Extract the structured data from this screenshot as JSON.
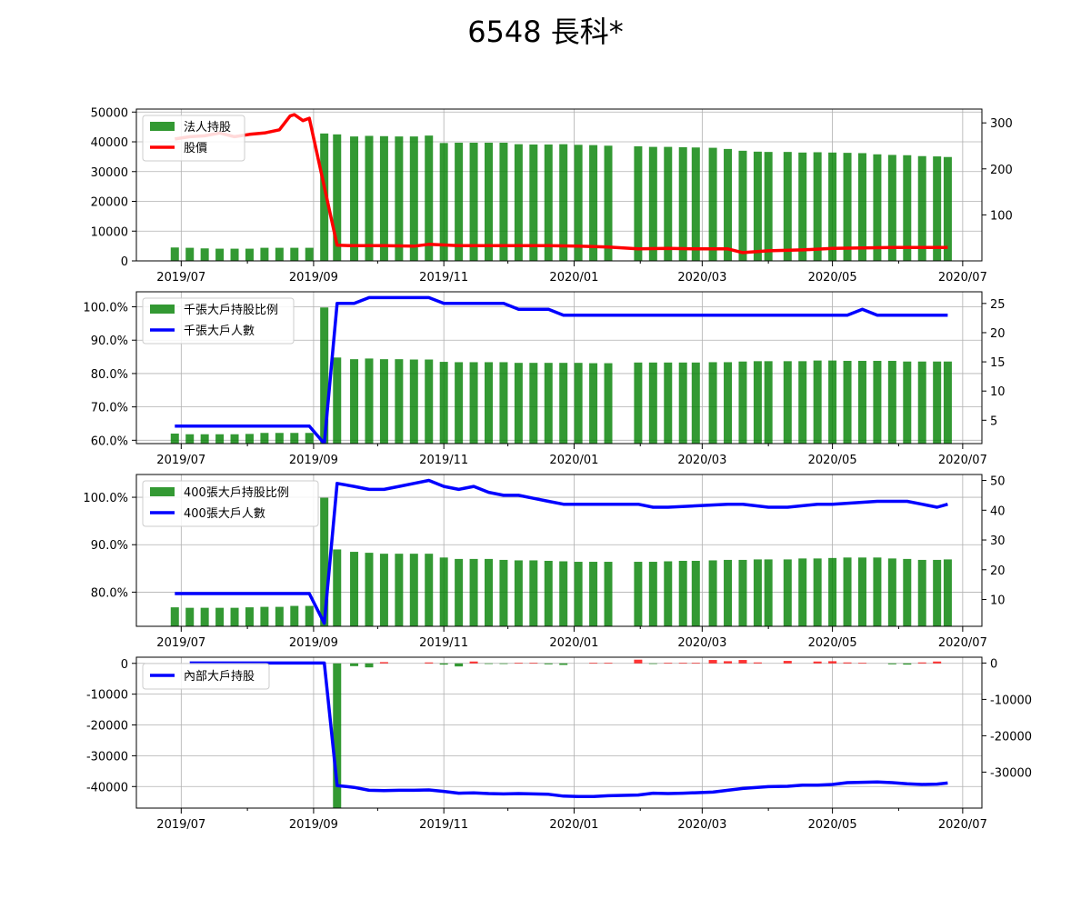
{
  "title": "6548 長科*",
  "colors": {
    "bar_green": "#008000",
    "price_red": "#ff0000",
    "line_blue": "#0000ff",
    "bar_red": "#ff0000"
  },
  "x_ticks": [
    "2019/07",
    "2019/09",
    "2019/11",
    "2020/01",
    "2020/03",
    "2020/05",
    "2020/07"
  ],
  "chart_data": [
    {
      "type": "bar",
      "title": "",
      "legend": {
        "position": "top-left",
        "bar_label": "法人持股",
        "line_label": "股價"
      },
      "x_range": [
        "2019-06-10",
        "2020-07-10"
      ],
      "ylim": [
        0,
        51000
      ],
      "y_ticks": [
        "0",
        "10000",
        "20000",
        "30000",
        "40000",
        "50000"
      ],
      "y2lim": [
        0,
        330
      ],
      "y2_ticks": [
        "100",
        "200",
        "300"
      ],
      "grid": true,
      "bars": {
        "name": "法人持股",
        "x": [
          "2019-06-28",
          "2019-07-05",
          "2019-07-12",
          "2019-07-19",
          "2019-07-26",
          "2019-08-02",
          "2019-08-09",
          "2019-08-16",
          "2019-08-23",
          "2019-08-30",
          "2019-09-06",
          "2019-09-12",
          "2019-09-20",
          "2019-09-27",
          "2019-10-04",
          "2019-10-11",
          "2019-10-18",
          "2019-10-25",
          "2019-11-01",
          "2019-11-08",
          "2019-11-15",
          "2019-11-22",
          "2019-11-29",
          "2019-12-06",
          "2019-12-13",
          "2019-12-20",
          "2019-12-27",
          "2020-01-03",
          "2020-01-10",
          "2020-01-17",
          "2020-01-31",
          "2020-02-07",
          "2020-02-14",
          "2020-02-21",
          "2020-02-27",
          "2020-03-06",
          "2020-03-13",
          "2020-03-20",
          "2020-03-27",
          "2020-04-01",
          "2020-04-10",
          "2020-04-17",
          "2020-04-24",
          "2020-05-01",
          "2020-05-08",
          "2020-05-15",
          "2020-05-22",
          "2020-05-29",
          "2020-06-05",
          "2020-06-12",
          "2020-06-19",
          "2020-06-24"
        ],
        "values": [
          4500,
          4400,
          4200,
          4100,
          4100,
          4100,
          4400,
          4400,
          4400,
          4400,
          42800,
          42500,
          41800,
          42000,
          41900,
          41800,
          41800,
          42100,
          39600,
          39700,
          39700,
          39700,
          39700,
          39200,
          39100,
          39100,
          39200,
          39000,
          38900,
          38700,
          38500,
          38300,
          38300,
          38200,
          38100,
          38000,
          37600,
          37000,
          36700,
          36600,
          36600,
          36400,
          36500,
          36400,
          36300,
          36200,
          35800,
          35600,
          35500,
          35200,
          35100,
          34900
        ]
      },
      "line": {
        "name": "股價",
        "x": [
          "2019-06-28",
          "2019-07-05",
          "2019-07-12",
          "2019-07-19",
          "2019-07-26",
          "2019-08-02",
          "2019-08-09",
          "2019-08-16",
          "2019-08-21",
          "2019-08-23",
          "2019-08-27",
          "2019-08-30",
          "2019-09-12",
          "2019-09-20",
          "2019-10-04",
          "2019-10-18",
          "2019-10-25",
          "2019-11-08",
          "2019-11-22",
          "2019-12-06",
          "2019-12-20",
          "2020-01-03",
          "2020-01-17",
          "2020-01-31",
          "2020-02-14",
          "2020-02-27",
          "2020-03-13",
          "2020-03-20",
          "2020-04-01",
          "2020-04-17",
          "2020-05-01",
          "2020-05-15",
          "2020-05-29",
          "2020-06-12",
          "2020-06-24"
        ],
        "values": [
          265,
          270,
          272,
          278,
          270,
          275,
          278,
          285,
          315,
          318,
          305,
          310,
          34,
          33,
          33,
          32,
          36,
          33,
          33,
          33,
          33,
          32,
          30,
          26,
          27,
          26,
          26,
          18,
          22,
          24,
          27,
          28,
          29,
          29,
          29
        ]
      }
    },
    {
      "type": "bar",
      "title": "",
      "legend": {
        "position": "top-left",
        "bar_label": "千張大戶持股比例",
        "line_label": "千張大戶人數"
      },
      "x_range": [
        "2019-06-10",
        "2020-07-10"
      ],
      "ylim": [
        59,
        104.5
      ],
      "y_ticks": [
        "60.0%",
        "70.0%",
        "80.0%",
        "90.0%",
        "100.0%"
      ],
      "y2lim": [
        1,
        27
      ],
      "y2_ticks": [
        "5",
        "10",
        "15",
        "20",
        "25"
      ],
      "grid": true,
      "bars": {
        "name": "千張大戶持股比例",
        "x": [
          "2019-06-28",
          "2019-07-05",
          "2019-07-12",
          "2019-07-19",
          "2019-07-26",
          "2019-08-02",
          "2019-08-09",
          "2019-08-16",
          "2019-08-23",
          "2019-08-30",
          "2019-09-06",
          "2019-09-12",
          "2019-09-20",
          "2019-09-27",
          "2019-10-04",
          "2019-10-11",
          "2019-10-18",
          "2019-10-25",
          "2019-11-01",
          "2019-11-08",
          "2019-11-15",
          "2019-11-22",
          "2019-11-29",
          "2019-12-06",
          "2019-12-13",
          "2019-12-20",
          "2019-12-27",
          "2020-01-03",
          "2020-01-10",
          "2020-01-17",
          "2020-01-31",
          "2020-02-07",
          "2020-02-14",
          "2020-02-21",
          "2020-02-27",
          "2020-03-06",
          "2020-03-13",
          "2020-03-20",
          "2020-03-27",
          "2020-04-01",
          "2020-04-10",
          "2020-04-17",
          "2020-04-24",
          "2020-05-01",
          "2020-05-08",
          "2020-05-15",
          "2020-05-22",
          "2020-05-29",
          "2020-06-05",
          "2020-06-12",
          "2020-06-19",
          "2020-06-24"
        ],
        "values": [
          62.0,
          61.8,
          61.8,
          61.8,
          61.8,
          61.9,
          62.2,
          62.2,
          62.2,
          62.2,
          99.8,
          84.8,
          84.3,
          84.5,
          84.3,
          84.3,
          84.2,
          84.2,
          83.5,
          83.4,
          83.4,
          83.4,
          83.4,
          83.2,
          83.2,
          83.2,
          83.2,
          83.2,
          83.1,
          83.1,
          83.3,
          83.3,
          83.3,
          83.3,
          83.3,
          83.4,
          83.4,
          83.6,
          83.7,
          83.7,
          83.7,
          83.7,
          83.9,
          83.9,
          83.8,
          83.8,
          83.8,
          83.8,
          83.6,
          83.6,
          83.6,
          83.6
        ]
      },
      "line": {
        "name": "千張大戶人數",
        "x": [
          "2019-06-28",
          "2019-08-30",
          "2019-09-06",
          "2019-09-12",
          "2019-09-20",
          "2019-09-27",
          "2019-10-04",
          "2019-10-25",
          "2019-11-01",
          "2019-11-29",
          "2019-12-06",
          "2019-12-20",
          "2019-12-27",
          "2020-04-17",
          "2020-05-01",
          "2020-05-08",
          "2020-05-15",
          "2020-05-22",
          "2020-06-24"
        ],
        "values": [
          4,
          4,
          1,
          25,
          25,
          26,
          26,
          26,
          25,
          25,
          24,
          24,
          23,
          23,
          23,
          23,
          24,
          23,
          23
        ]
      }
    },
    {
      "type": "bar",
      "title": "",
      "legend": {
        "position": "top-left",
        "bar_label": "400張大戶持股比例",
        "line_label": "400張大戶人數"
      },
      "x_range": [
        "2019-06-10",
        "2020-07-10"
      ],
      "ylim": [
        72.8,
        104.8
      ],
      "y_ticks": [
        "80.0%",
        "90.0%",
        "100.0%"
      ],
      "y2lim": [
        1,
        52
      ],
      "y2_ticks": [
        "10",
        "20",
        "30",
        "40",
        "50"
      ],
      "grid": true,
      "bars": {
        "name": "400張大戶持股比例",
        "x": [
          "2019-06-28",
          "2019-07-05",
          "2019-07-12",
          "2019-07-19",
          "2019-07-26",
          "2019-08-02",
          "2019-08-09",
          "2019-08-16",
          "2019-08-23",
          "2019-08-30",
          "2019-09-06",
          "2019-09-12",
          "2019-09-20",
          "2019-09-27",
          "2019-10-04",
          "2019-10-11",
          "2019-10-18",
          "2019-10-25",
          "2019-11-01",
          "2019-11-08",
          "2019-11-15",
          "2019-11-22",
          "2019-11-29",
          "2019-12-06",
          "2019-12-13",
          "2019-12-20",
          "2019-12-27",
          "2020-01-03",
          "2020-01-10",
          "2020-01-17",
          "2020-01-31",
          "2020-02-07",
          "2020-02-14",
          "2020-02-21",
          "2020-02-27",
          "2020-03-06",
          "2020-03-13",
          "2020-03-20",
          "2020-03-27",
          "2020-04-01",
          "2020-04-10",
          "2020-04-17",
          "2020-04-24",
          "2020-05-01",
          "2020-05-08",
          "2020-05-15",
          "2020-05-22",
          "2020-05-29",
          "2020-06-05",
          "2020-06-12",
          "2020-06-19",
          "2020-06-24"
        ],
        "values": [
          76.8,
          76.7,
          76.7,
          76.7,
          76.7,
          76.8,
          76.9,
          76.9,
          77.1,
          77.1,
          99.9,
          89.0,
          88.5,
          88.3,
          88.1,
          88.1,
          88.1,
          88.1,
          87.3,
          87.0,
          87.0,
          87.0,
          86.8,
          86.7,
          86.7,
          86.6,
          86.5,
          86.4,
          86.4,
          86.4,
          86.4,
          86.4,
          86.5,
          86.6,
          86.6,
          86.7,
          86.8,
          86.8,
          86.9,
          86.9,
          86.9,
          87.1,
          87.1,
          87.2,
          87.3,
          87.3,
          87.3,
          87.1,
          87.0,
          86.8,
          86.8,
          86.9
        ]
      },
      "line": {
        "name": "400張大戶人數",
        "x": [
          "2019-06-28",
          "2019-08-30",
          "2019-09-06",
          "2019-09-12",
          "2019-09-20",
          "2019-09-27",
          "2019-10-04",
          "2019-10-11",
          "2019-10-18",
          "2019-10-25",
          "2019-11-01",
          "2019-11-08",
          "2019-11-15",
          "2019-11-22",
          "2019-11-29",
          "2019-12-06",
          "2019-12-13",
          "2019-12-20",
          "2019-12-27",
          "2020-01-03",
          "2020-01-31",
          "2020-02-07",
          "2020-02-14",
          "2020-03-13",
          "2020-03-20",
          "2020-04-01",
          "2020-04-10",
          "2020-04-24",
          "2020-05-01",
          "2020-05-22",
          "2020-06-05",
          "2020-06-12",
          "2020-06-19",
          "2020-06-24"
        ],
        "values": [
          12,
          12,
          2,
          49,
          48,
          47,
          47,
          48,
          49,
          50,
          48,
          47,
          48,
          46,
          45,
          45,
          44,
          43,
          42,
          42,
          42,
          41,
          41,
          42,
          42,
          41,
          41,
          42,
          42,
          43,
          43,
          42,
          41,
          42
        ]
      }
    },
    {
      "type": "bar",
      "title": "",
      "legend": {
        "position": "top-left",
        "line_label": "內部大戶持股"
      },
      "x_range": [
        "2019-06-10",
        "2020-07-10"
      ],
      "ylim": [
        -47000,
        2000
      ],
      "y_ticks": [
        "0",
        "-10000",
        "-20000",
        "-30000",
        "-40000"
      ],
      "y2lim": [
        -39900,
        1600
      ],
      "y2_ticks": [
        "0",
        "-10000",
        "-20000",
        "-30000"
      ],
      "grid": true,
      "bars": {
        "name": "",
        "x": [
          "2019-09-12",
          "2019-09-20",
          "2019-09-27",
          "2019-10-04",
          "2019-10-25",
          "2019-11-01",
          "2019-11-08",
          "2019-11-15",
          "2019-11-22",
          "2019-11-29",
          "2019-12-06",
          "2019-12-13",
          "2019-12-20",
          "2019-12-27",
          "2020-01-10",
          "2020-01-17",
          "2020-01-31",
          "2020-02-07",
          "2020-02-14",
          "2020-02-21",
          "2020-02-27",
          "2020-03-06",
          "2020-03-13",
          "2020-03-20",
          "2020-03-27",
          "2020-04-10",
          "2020-04-24",
          "2020-05-01",
          "2020-05-08",
          "2020-05-15",
          "2020-05-29",
          "2020-06-05",
          "2020-06-12",
          "2020-06-19"
        ],
        "values": [
          -47000,
          -900,
          -1300,
          400,
          300,
          -400,
          -1000,
          600,
          -200,
          -200,
          200,
          200,
          -300,
          -500,
          200,
          200,
          1200,
          -200,
          200,
          200,
          200,
          1100,
          700,
          1100,
          300,
          800,
          600,
          700,
          300,
          200,
          -300,
          -400,
          300,
          600
        ]
      },
      "line": {
        "name": "內部大戶持股",
        "x": [
          "2019-07-05",
          "2019-08-30",
          "2019-09-06",
          "2019-09-12",
          "2019-09-20",
          "2019-09-27",
          "2019-10-04",
          "2019-10-11",
          "2019-10-18",
          "2019-10-25",
          "2019-11-01",
          "2019-11-08",
          "2019-11-15",
          "2019-11-22",
          "2019-11-29",
          "2019-12-06",
          "2019-12-13",
          "2019-12-20",
          "2019-12-27",
          "2020-01-03",
          "2020-01-10",
          "2020-01-17",
          "2020-01-31",
          "2020-02-07",
          "2020-02-14",
          "2020-02-21",
          "2020-03-06",
          "2020-03-13",
          "2020-03-20",
          "2020-04-01",
          "2020-04-10",
          "2020-04-17",
          "2020-04-24",
          "2020-05-01",
          "2020-05-08",
          "2020-05-15",
          "2020-05-22",
          "2020-05-29",
          "2020-06-05",
          "2020-06-12",
          "2020-06-19",
          "2020-06-24"
        ],
        "values": [
          0,
          0,
          0,
          -33700,
          -34200,
          -35000,
          -35100,
          -35000,
          -35000,
          -34900,
          -35300,
          -35800,
          -35700,
          -35900,
          -36000,
          -35900,
          -36000,
          -36100,
          -36600,
          -36700,
          -36700,
          -36500,
          -36300,
          -35800,
          -35900,
          -35800,
          -35500,
          -35000,
          -34500,
          -34000,
          -33900,
          -33600,
          -33600,
          -33400,
          -32900,
          -32800,
          -32700,
          -32900,
          -33200,
          -33400,
          -33300,
          -33000
        ]
      }
    }
  ]
}
